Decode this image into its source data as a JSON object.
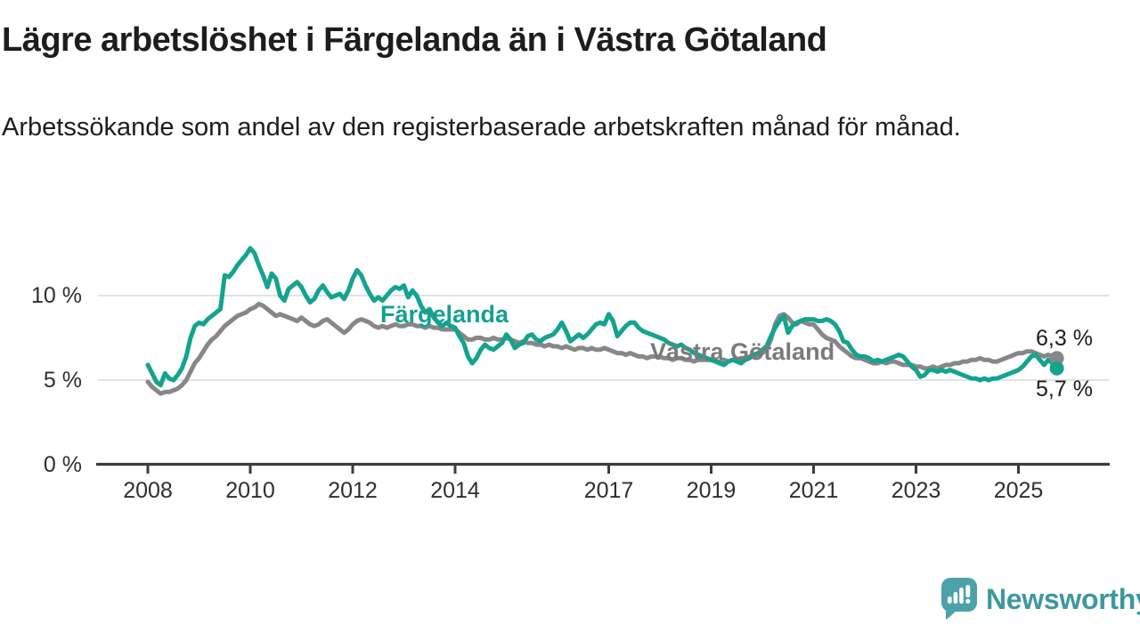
{
  "header": {
    "title": "Lägre arbetslöshet i Färgelanda än i Västra Götaland",
    "subtitle_lines": [
      "Arbetssökande som andel av den registerbaserade arbetskraften månad för månad."
    ]
  },
  "chart_data": {
    "type": "line",
    "unit": "%",
    "x_start": "2008-01",
    "x_end": "2025-10",
    "x_frequency": "monthly",
    "x_ticks": [
      2008,
      2010,
      2012,
      2014,
      2017,
      2019,
      2021,
      2023,
      2025
    ],
    "y_ticks": [
      {
        "value": 0,
        "label": "0 %"
      },
      {
        "value": 5,
        "label": "5 %"
      },
      {
        "value": 10,
        "label": "10 %"
      }
    ],
    "ylim": [
      0,
      13.7
    ],
    "grid": "horizontal",
    "legend_position": "inline-labels-on-lines",
    "series": [
      {
        "name": "Västra Götaland",
        "color": "#878787",
        "end_label": "6,3 %",
        "end_value": 6.3,
        "values": [
          4.9,
          4.6,
          4.4,
          4.2,
          4.3,
          4.3,
          4.4,
          4.5,
          4.7,
          5.0,
          5.5,
          6.0,
          6.3,
          6.7,
          7.1,
          7.4,
          7.6,
          7.9,
          8.2,
          8.4,
          8.6,
          8.8,
          8.9,
          9.0,
          9.2,
          9.3,
          9.5,
          9.4,
          9.2,
          9.0,
          8.8,
          8.9,
          8.8,
          8.7,
          8.6,
          8.5,
          8.7,
          8.5,
          8.3,
          8.2,
          8.3,
          8.5,
          8.6,
          8.4,
          8.2,
          8.0,
          7.8,
          8.0,
          8.3,
          8.5,
          8.6,
          8.5,
          8.4,
          8.2,
          8.1,
          8.2,
          8.1,
          8.2,
          8.3,
          8.2,
          8.2,
          8.3,
          8.3,
          8.2,
          8.2,
          8.1,
          8.2,
          8.1,
          8.1,
          8.0,
          8.0,
          8.0,
          8.0,
          7.8,
          7.6,
          7.4,
          7.4,
          7.5,
          7.5,
          7.4,
          7.4,
          7.5,
          7.4,
          7.4,
          7.5,
          7.4,
          7.3,
          7.2,
          7.3,
          7.2,
          7.2,
          7.1,
          7.1,
          7.0,
          7.1,
          7.0,
          7.0,
          6.9,
          7.0,
          6.9,
          6.8,
          6.9,
          6.9,
          6.8,
          6.9,
          6.8,
          6.8,
          6.9,
          6.8,
          6.7,
          6.6,
          6.6,
          6.5,
          6.6,
          6.5,
          6.4,
          6.4,
          6.3,
          6.4,
          6.4,
          6.4,
          6.3,
          6.3,
          6.2,
          6.3,
          6.3,
          6.2,
          6.2,
          6.1,
          6.2,
          6.2,
          6.2,
          6.2,
          6.1,
          6.1,
          6.2,
          6.1,
          6.2,
          6.2,
          6.3,
          6.3,
          6.4,
          6.4,
          6.5,
          6.6,
          6.8,
          7.4,
          8.3,
          8.8,
          8.9,
          8.7,
          8.4,
          8.3,
          8.5,
          8.4,
          8.3,
          8.3,
          8.0,
          7.7,
          7.5,
          7.4,
          7.3,
          7.0,
          6.8,
          6.6,
          6.4,
          6.3,
          6.3,
          6.2,
          6.1,
          6.0,
          6.0,
          6.1,
          6.0,
          6.1,
          6.1,
          6.0,
          5.9,
          5.9,
          5.9,
          5.8,
          5.8,
          5.7,
          5.7,
          5.8,
          5.7,
          5.8,
          5.9,
          5.9,
          6.0,
          6.0,
          6.1,
          6.1,
          6.2,
          6.2,
          6.3,
          6.2,
          6.2,
          6.1,
          6.1,
          6.2,
          6.3,
          6.4,
          6.5,
          6.6,
          6.6,
          6.7,
          6.7,
          6.6,
          6.5,
          6.4,
          6.5,
          6.4,
          6.3
        ]
      },
      {
        "name": "Färgelanda",
        "color": "#14a38f",
        "end_label": "5,7 %",
        "end_value": 5.7,
        "values": [
          5.9,
          5.4,
          4.9,
          4.7,
          5.4,
          5.1,
          5.0,
          5.3,
          5.7,
          6.4,
          7.5,
          8.2,
          8.4,
          8.3,
          8.6,
          8.8,
          9.0,
          9.2,
          11.2,
          11.1,
          11.4,
          11.8,
          12.1,
          12.4,
          12.8,
          12.5,
          11.8,
          11.2,
          10.5,
          11.3,
          11.0,
          10.0,
          9.7,
          10.4,
          10.6,
          10.8,
          10.5,
          10.0,
          9.6,
          9.8,
          10.3,
          10.6,
          10.2,
          9.9,
          10.0,
          10.1,
          9.8,
          10.3,
          11.0,
          11.5,
          11.2,
          10.6,
          10.1,
          9.7,
          9.9,
          9.7,
          10.0,
          10.3,
          10.5,
          10.4,
          10.6,
          9.9,
          10.3,
          10.0,
          9.4,
          9.0,
          9.2,
          8.7,
          8.4,
          8.2,
          8.4,
          8.2,
          8.1,
          7.6,
          7.2,
          6.4,
          6.0,
          6.3,
          6.8,
          7.1,
          6.9,
          6.8,
          7.0,
          7.2,
          7.7,
          7.4,
          6.9,
          7.1,
          7.2,
          7.6,
          7.7,
          7.4,
          7.3,
          7.5,
          7.6,
          7.7,
          8.0,
          8.4,
          7.9,
          7.3,
          7.5,
          7.7,
          7.5,
          7.7,
          8.0,
          8.3,
          8.4,
          8.3,
          8.9,
          8.5,
          7.6,
          7.9,
          8.2,
          8.4,
          8.4,
          8.1,
          7.9,
          7.8,
          7.7,
          7.6,
          7.5,
          7.4,
          7.2,
          7.1,
          7.0,
          7.1,
          6.9,
          6.8,
          6.6,
          6.5,
          6.4,
          6.3,
          6.2,
          6.1,
          6.0,
          5.9,
          6.1,
          6.2,
          6.1,
          6.0,
          6.2,
          6.3,
          6.5,
          6.6,
          6.8,
          7.0,
          7.6,
          8.1,
          8.5,
          8.8,
          7.8,
          8.2,
          8.4,
          8.5,
          8.6,
          8.6,
          8.6,
          8.5,
          8.5,
          8.6,
          8.5,
          8.3,
          7.9,
          7.3,
          7.2,
          6.8,
          6.5,
          6.4,
          6.4,
          6.3,
          6.1,
          6.2,
          6.1,
          6.2,
          6.3,
          6.4,
          6.5,
          6.4,
          6.1,
          5.8,
          5.6,
          5.2,
          5.3,
          5.6,
          5.6,
          5.5,
          5.6,
          5.5,
          5.6,
          5.5,
          5.4,
          5.3,
          5.2,
          5.1,
          5.1,
          5.0,
          5.1,
          5.0,
          5.1,
          5.1,
          5.2,
          5.3,
          5.4,
          5.5,
          5.6,
          5.8,
          6.1,
          6.4,
          6.5,
          6.2,
          5.9,
          6.2,
          6.0,
          5.7
        ]
      }
    ]
  },
  "colors": {
    "axis": "#3c3c3c",
    "gridline": "#dadada",
    "tick_text": "#2f2f2f",
    "title_text": "#1d1d1d"
  },
  "branding": {
    "logo_text": "Newsworthy",
    "logo_color": "#3e989e",
    "logo_icon_color": "#4ba2a8"
  }
}
